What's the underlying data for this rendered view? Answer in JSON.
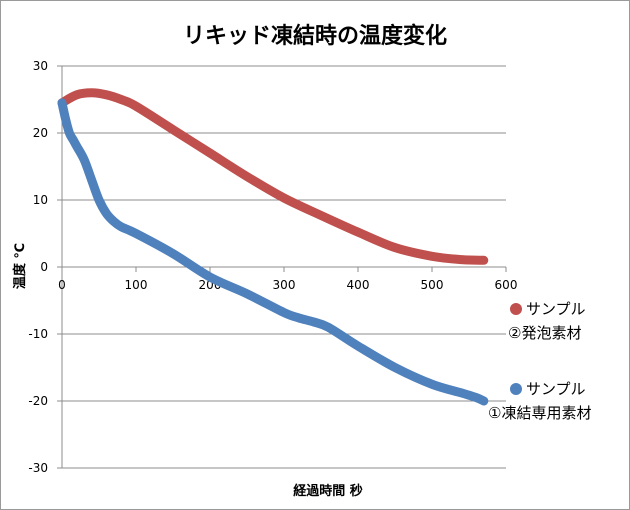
{
  "chart_data": {
    "type": "line",
    "title": "リキッド凍結時の温度変化",
    "xlabel": "経過時間 秒",
    "ylabel": "温度 ℃",
    "xlim": [
      0,
      600
    ],
    "ylim": [
      -30,
      30
    ],
    "x_ticks": [
      0,
      100,
      200,
      300,
      400,
      500,
      600
    ],
    "y_ticks": [
      30,
      20,
      10,
      0,
      -10,
      -20,
      -30
    ],
    "grid": "horizontal",
    "legend_position": "right",
    "series": [
      {
        "name_line1": "サンプル",
        "name_line2": "②発泡素材",
        "color": "#c0504d",
        "x": [
          0,
          20,
          40,
          60,
          80,
          100,
          150,
          200,
          250,
          300,
          350,
          400,
          450,
          500,
          540,
          570
        ],
        "y": [
          24.5,
          25.7,
          26.0,
          25.7,
          25.0,
          24.0,
          20.5,
          17.0,
          13.5,
          10.3,
          7.7,
          5.2,
          2.9,
          1.6,
          1.1,
          1.0
        ]
      },
      {
        "name_line1": "サンプル",
        "name_line2": "①凍結専用素材",
        "color": "#4f81bd",
        "x": [
          0,
          5,
          10,
          15,
          20,
          30,
          40,
          50,
          60,
          70,
          80,
          100,
          150,
          200,
          250,
          300,
          320,
          340,
          360,
          400,
          450,
          500,
          540,
          560,
          570
        ],
        "y": [
          24.5,
          22.0,
          20.0,
          19.0,
          18.0,
          16.0,
          13.0,
          10.0,
          8.0,
          6.8,
          6.0,
          5.0,
          2.0,
          -1.5,
          -4.0,
          -6.8,
          -7.6,
          -8.2,
          -9.0,
          -11.8,
          -15.0,
          -17.5,
          -18.8,
          -19.5,
          -20.0
        ]
      }
    ]
  }
}
